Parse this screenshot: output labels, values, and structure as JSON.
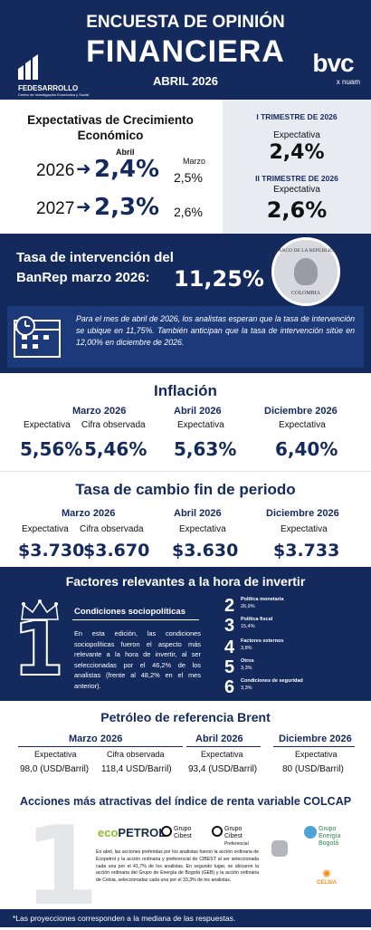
{
  "header": {
    "line1": "ENCUESTA DE OPINIÓN",
    "line2": "FINANCIERA",
    "date": "ABRIL 2026",
    "fed_name": "FEDESARROLLO",
    "fed_sub": "Centro de Investigación Económica y Social",
    "bvc": "bvc",
    "nuam": "x nuam"
  },
  "crecimiento": {
    "title": "Expectativas de Crecimiento Económico",
    "col_abril": "Abril",
    "col_marzo": "Marzo",
    "rows": [
      {
        "year": "2026",
        "abril": "2,4%",
        "marzo": "2,5%"
      },
      {
        "year": "2027",
        "abril": "2,3%",
        "marzo": "2,6%"
      }
    ],
    "t1_title": "I TRIMESTRE DE 2026",
    "t1_lbl": "Expectativa",
    "t1_val": "2,4%",
    "t2_title": "II TRIMESTRE DE 2026",
    "t2_lbl": "Expectativa",
    "t2_val": "2,6%"
  },
  "tasa": {
    "title": "Tasa de intervención del BanRep marzo 2026:",
    "value": "11,25%",
    "seal_top": "BANCO DE LA REPÚBLICA",
    "seal_bottom": "COLOMBIA",
    "text": "Para el mes de abril de 2026, los analistas esperan que la tasa de intervención se ubique en 11,75%. También anticipan que la tasa de intervención sitúe en 12,00% en diciembre de 2026."
  },
  "inflacion": {
    "title": "Inflación",
    "cols": [
      {
        "month": "Marzo 2026",
        "items": [
          {
            "label": "Expectativa",
            "value": "5,56%"
          },
          {
            "label": "Cifra observada",
            "value": "5,46%"
          }
        ]
      },
      {
        "month": "Abril 2026",
        "items": [
          {
            "label": "Expectativa",
            "value": "5,63%"
          }
        ]
      },
      {
        "month": "Diciembre 2026",
        "items": [
          {
            "label": "Expectativa",
            "value": "6,40%"
          }
        ]
      }
    ]
  },
  "cambio": {
    "title": "Tasa de cambio fin de periodo",
    "cols": [
      {
        "month": "Marzo 2026",
        "items": [
          {
            "label": "Expectativa",
            "value": "$3.730"
          },
          {
            "label": "Cifra observada",
            "value": "$3.670"
          }
        ]
      },
      {
        "month": "Abril 2026",
        "items": [
          {
            "label": "Expectativa",
            "value": "$3.630"
          }
        ]
      },
      {
        "month": "Diciembre 2026",
        "items": [
          {
            "label": "Expectativa",
            "value": "$3.733"
          }
        ]
      }
    ]
  },
  "factores": {
    "title": "Factores relevantes a la hora de invertir",
    "number": "1",
    "main": "Condiciones sociopolíticas",
    "text": "En esta edición, las condiciones sociopolíticas fueron el aspecto más relevante a la hora de invertir, al ser seleccionadas por el 46,2% de los analistas (frente al 48,2% en el mes anterior).",
    "list": [
      {
        "n": "2",
        "name": "Política monetaria",
        "pct": "26,9%"
      },
      {
        "n": "3",
        "name": "Política fiscal",
        "pct": "15,4%"
      },
      {
        "n": "4",
        "name": "Factores externos",
        "pct": "3,8%"
      },
      {
        "n": "5",
        "name": "Otros",
        "pct": "3,3%"
      },
      {
        "n": "6",
        "name": "Condiciones de seguridad",
        "pct": "3,3%"
      }
    ]
  },
  "petroleo": {
    "title": "Petróleo de referencia Brent",
    "cols": [
      {
        "month": "Marzo 2026",
        "items": [
          {
            "label": "Expectativa",
            "value": "98,0 (USD/Barril)"
          },
          {
            "label": "Cifra observada",
            "value": "118,4 USD/Barril)"
          }
        ]
      },
      {
        "month": "Abril 2026",
        "items": [
          {
            "label": "Expectativa",
            "value": "93,4 (USD/Barril)"
          }
        ]
      },
      {
        "month": "Diciembre 2026",
        "items": [
          {
            "label": "Expectativa",
            "value": "80 (USD/Barril)"
          }
        ]
      }
    ]
  },
  "acciones": {
    "title": "Acciones más atractivas del índice de renta variable COLCAP",
    "number": "1",
    "ecopetrol": "ecopetrol",
    "cibest1": "Grupo Cibest",
    "cibest2": "Grupo Cibest",
    "cibest2_sub": "Preferencial",
    "geb": "Grupo Energía Bogotá",
    "celsia": "CELSIA",
    "text": "En abril, las acciones preferidas por los analistas fueron la acción ordinaria de Ecopetrol y la acción ordinaria y preferencial de CIBEST al ser seleccionada cada una por el 41,7% de los analistas. En segundo lugar, se ubicaron la acción ordinaria del Grupo de Energía de Bogotá (GEB) y la acción ordinaria de Celsia, seleccionadas cada una por el 33,3% de los analistas."
  },
  "footer": "*Las proyecciones corresponden a la mediana de las respuestas."
}
